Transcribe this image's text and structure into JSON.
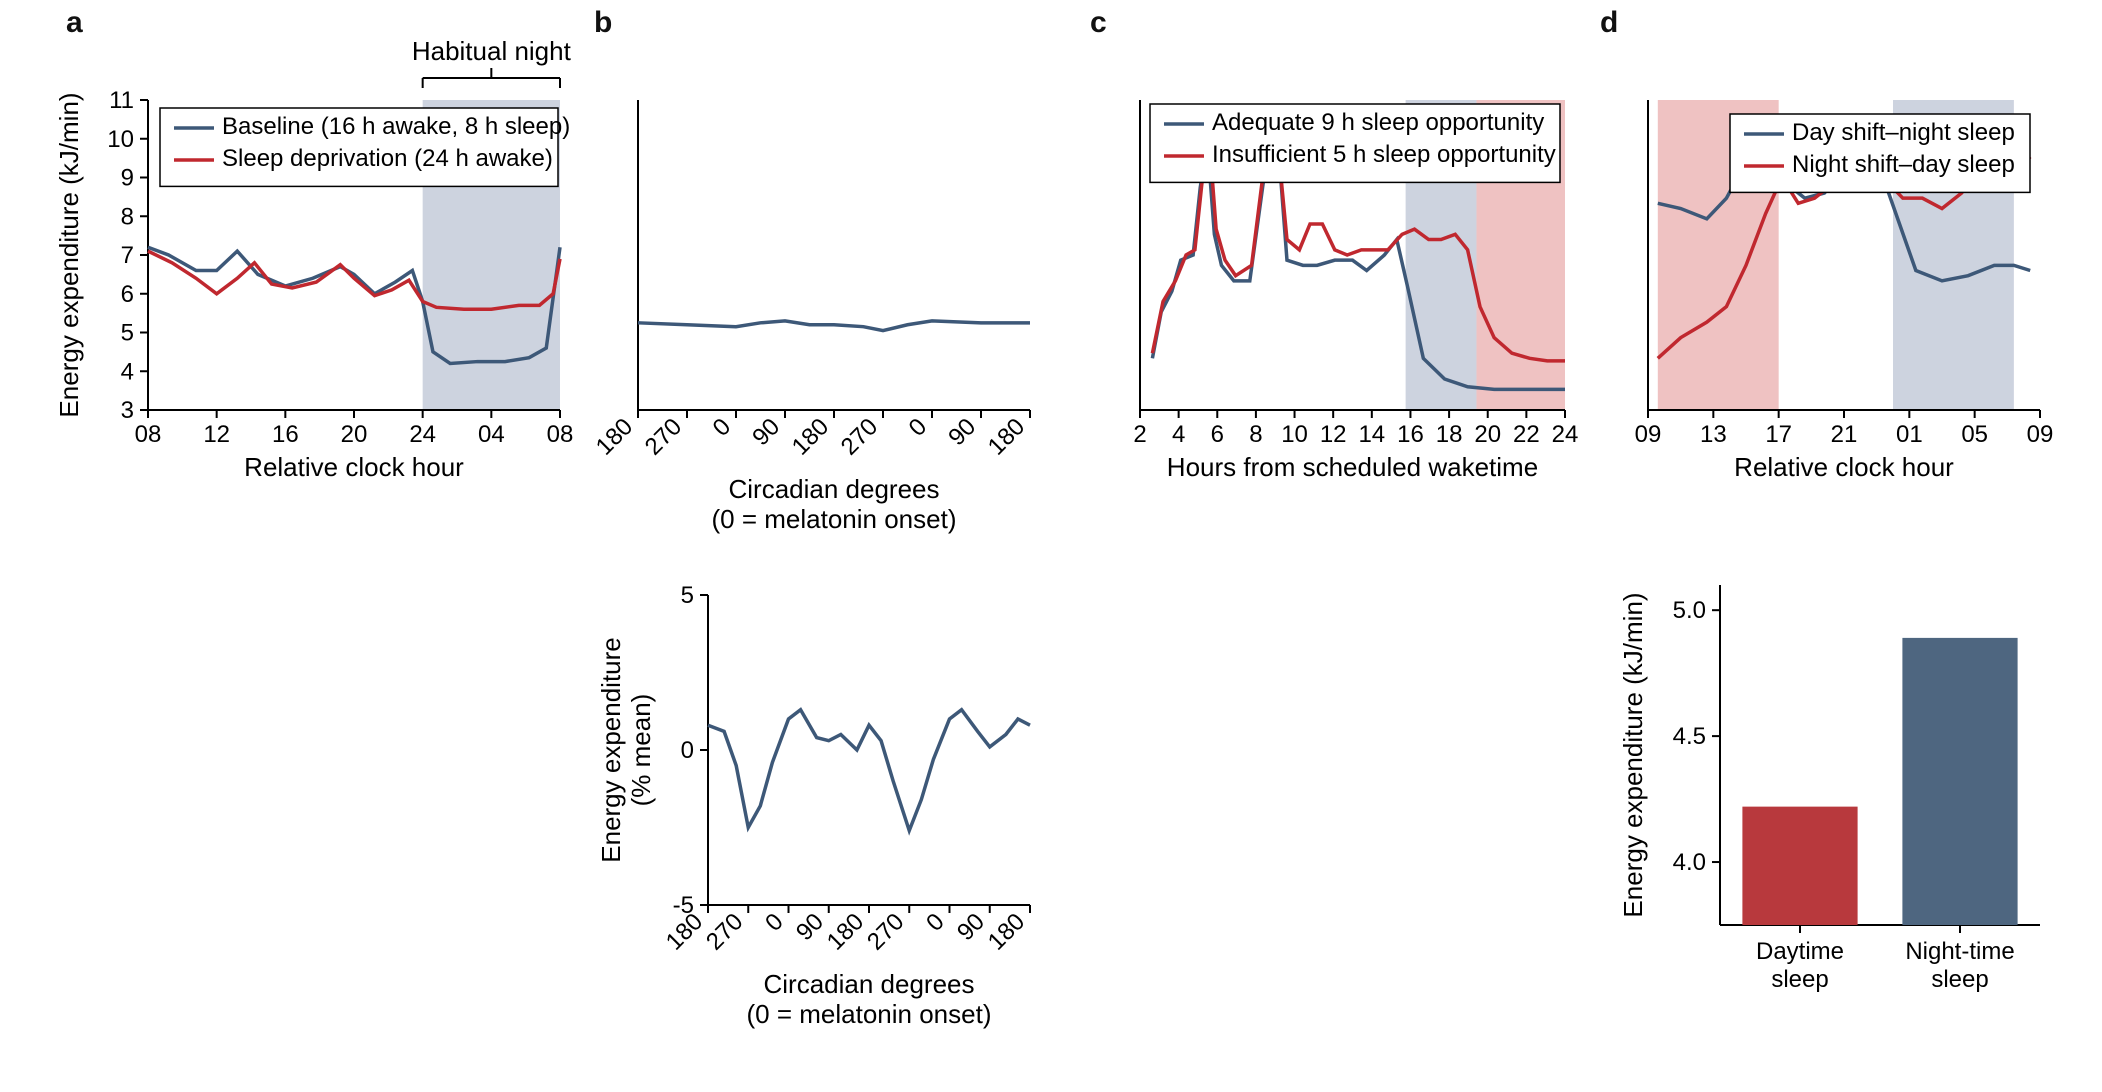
{
  "colors": {
    "blue": "#3d5878",
    "red": "#c0282f",
    "shade_blue": "#cdd3df",
    "shade_red": "#efc2c2",
    "bar_blue": "#4e6680",
    "bar_red": "#b8393d"
  },
  "panelA": {
    "label": "a",
    "type": "line",
    "xlabel": "Relative clock hour",
    "ylabel": "Energy expenditure (kJ/min)",
    "xticks": [
      "08",
      "12",
      "16",
      "20",
      "24",
      "04",
      "08"
    ],
    "ylim": [
      3,
      11
    ],
    "ytick_step": 1,
    "shade": {
      "from_tick": 4,
      "to_tick": 6,
      "label": "Habitual night"
    },
    "legend": [
      {
        "text": "Baseline (16 h awake, 8 h sleep)",
        "color_key": "blue"
      },
      {
        "text": "Sleep deprivation (24 h awake)",
        "color_key": "red"
      }
    ],
    "series": {
      "baseline": {
        "color_key": "blue",
        "pts": [
          [
            0,
            7.2
          ],
          [
            0.3,
            7.0
          ],
          [
            0.7,
            6.6
          ],
          [
            1.0,
            6.6
          ],
          [
            1.3,
            7.1
          ],
          [
            1.6,
            6.5
          ],
          [
            2.0,
            6.2
          ],
          [
            2.4,
            6.4
          ],
          [
            2.8,
            6.7
          ],
          [
            3.0,
            6.5
          ],
          [
            3.3,
            6.0
          ],
          [
            3.6,
            6.3
          ],
          [
            3.85,
            6.6
          ],
          [
            4.0,
            5.8
          ],
          [
            4.15,
            4.5
          ],
          [
            4.4,
            4.2
          ],
          [
            4.8,
            4.25
          ],
          [
            5.2,
            4.25
          ],
          [
            5.55,
            4.35
          ],
          [
            5.8,
            4.6
          ],
          [
            6.0,
            7.2
          ]
        ]
      },
      "deprivation": {
        "color_key": "red",
        "pts": [
          [
            0,
            7.1
          ],
          [
            0.35,
            6.8
          ],
          [
            0.7,
            6.4
          ],
          [
            1.0,
            6.0
          ],
          [
            1.3,
            6.4
          ],
          [
            1.55,
            6.8
          ],
          [
            1.8,
            6.25
          ],
          [
            2.1,
            6.15
          ],
          [
            2.45,
            6.3
          ],
          [
            2.8,
            6.75
          ],
          [
            3.0,
            6.4
          ],
          [
            3.3,
            5.95
          ],
          [
            3.55,
            6.1
          ],
          [
            3.8,
            6.35
          ],
          [
            4.0,
            5.8
          ],
          [
            4.2,
            5.65
          ],
          [
            4.6,
            5.6
          ],
          [
            5.0,
            5.6
          ],
          [
            5.4,
            5.7
          ],
          [
            5.7,
            5.7
          ],
          [
            5.9,
            6.0
          ],
          [
            6.0,
            6.9
          ]
        ]
      }
    }
  },
  "panelB_top": {
    "type": "line",
    "xlabel": "Circadian degrees",
    "xsub": "(0 = melatonin onset)",
    "xticks": [
      "180",
      "270",
      "0",
      "90",
      "180",
      "270",
      "0",
      "90",
      "180"
    ],
    "ylim_shared_with": "panelA",
    "series": {
      "flat": {
        "color_key": "blue",
        "pts": [
          [
            0,
            5.25
          ],
          [
            1,
            5.2
          ],
          [
            2,
            5.15
          ],
          [
            2.5,
            5.25
          ],
          [
            3,
            5.3
          ],
          [
            3.5,
            5.2
          ],
          [
            4,
            5.2
          ],
          [
            4.6,
            5.15
          ],
          [
            5,
            5.05
          ],
          [
            5.5,
            5.2
          ],
          [
            6,
            5.3
          ],
          [
            7,
            5.25
          ],
          [
            8,
            5.25
          ]
        ]
      }
    }
  },
  "panelB_bottom": {
    "type": "line",
    "xlabel": "Circadian degrees",
    "xsub": "(0 = melatonin onset)",
    "ylabel": "Energy expenditure\n(% mean)",
    "xticks": [
      "180",
      "270",
      "0",
      "90",
      "180",
      "270",
      "0",
      "90",
      "180"
    ],
    "ylim": [
      -5,
      5
    ],
    "ytick_step": 5,
    "series": {
      "circ": {
        "color_key": "blue",
        "pts": [
          [
            0,
            0.8
          ],
          [
            0.4,
            0.6
          ],
          [
            0.7,
            -0.5
          ],
          [
            1.0,
            -2.5
          ],
          [
            1.3,
            -1.8
          ],
          [
            1.6,
            -0.4
          ],
          [
            2.0,
            1.0
          ],
          [
            2.3,
            1.3
          ],
          [
            2.7,
            0.4
          ],
          [
            3.0,
            0.3
          ],
          [
            3.3,
            0.5
          ],
          [
            3.7,
            0.0
          ],
          [
            4.0,
            0.8
          ],
          [
            4.3,
            0.3
          ],
          [
            4.6,
            -1.0
          ],
          [
            5.0,
            -2.6
          ],
          [
            5.3,
            -1.6
          ],
          [
            5.6,
            -0.3
          ],
          [
            6.0,
            1.0
          ],
          [
            6.3,
            1.3
          ],
          [
            6.7,
            0.6
          ],
          [
            7.0,
            0.1
          ],
          [
            7.4,
            0.5
          ],
          [
            7.7,
            1.0
          ],
          [
            8.0,
            0.8
          ]
        ]
      }
    }
  },
  "panelC": {
    "label": "c",
    "type": "line",
    "xlabel": "Hours from scheduled waketime",
    "xticks": [
      "2",
      "4",
      "6",
      "8",
      "10",
      "12",
      "14",
      "16",
      "18",
      "20",
      "22",
      "24"
    ],
    "legend": [
      {
        "text": "Adequate 9 h sleep opportunity",
        "color_key": "blue"
      },
      {
        "text": "Insufficient 5 h sleep opportunity",
        "color_key": "red"
      }
    ],
    "shades": [
      {
        "from": 15,
        "to": 19,
        "color_key": "shade_blue"
      },
      {
        "from": 19,
        "to": 24,
        "color_key": "shade_red"
      }
    ],
    "ylim": [
      4,
      10
    ],
    "series": {
      "adequate": {
        "color_key": "blue",
        "pts": [
          [
            0.7,
            5.0
          ],
          [
            1.2,
            5.9
          ],
          [
            1.8,
            6.3
          ],
          [
            2.3,
            6.9
          ],
          [
            3.0,
            7.0
          ],
          [
            3.4,
            8.3
          ],
          [
            3.8,
            9.2
          ],
          [
            4.2,
            7.4
          ],
          [
            4.6,
            6.8
          ],
          [
            5.3,
            6.5
          ],
          [
            6.2,
            6.5
          ],
          [
            7.0,
            8.5
          ],
          [
            7.7,
            9.6
          ],
          [
            8.3,
            6.9
          ],
          [
            9.2,
            6.8
          ],
          [
            10.0,
            6.8
          ],
          [
            11.0,
            6.9
          ],
          [
            12.0,
            6.9
          ],
          [
            12.8,
            6.7
          ],
          [
            13.8,
            7.0
          ],
          [
            14.5,
            7.3
          ],
          [
            15.1,
            6.4
          ],
          [
            16.0,
            5.0
          ],
          [
            17.2,
            4.6
          ],
          [
            18.5,
            4.45
          ],
          [
            20.0,
            4.4
          ],
          [
            21.5,
            4.4
          ],
          [
            23.0,
            4.4
          ],
          [
            24.0,
            4.4
          ]
        ]
      },
      "insufficient": {
        "color_key": "red",
        "pts": [
          [
            0.7,
            5.1
          ],
          [
            1.3,
            6.1
          ],
          [
            2.0,
            6.5
          ],
          [
            2.6,
            7.0
          ],
          [
            3.1,
            7.1
          ],
          [
            3.5,
            8.4
          ],
          [
            3.9,
            9.3
          ],
          [
            4.3,
            7.5
          ],
          [
            4.8,
            6.9
          ],
          [
            5.4,
            6.6
          ],
          [
            6.3,
            6.8
          ],
          [
            7.0,
            8.7
          ],
          [
            7.6,
            9.8
          ],
          [
            8.3,
            7.3
          ],
          [
            9.0,
            7.1
          ],
          [
            9.6,
            7.6
          ],
          [
            10.3,
            7.6
          ],
          [
            11.0,
            7.1
          ],
          [
            11.7,
            7.0
          ],
          [
            12.5,
            7.1
          ],
          [
            13.2,
            7.1
          ],
          [
            14.0,
            7.1
          ],
          [
            14.8,
            7.4
          ],
          [
            15.5,
            7.5
          ],
          [
            16.3,
            7.3
          ],
          [
            17.0,
            7.3
          ],
          [
            17.8,
            7.4
          ],
          [
            18.5,
            7.1
          ],
          [
            19.2,
            6.0
          ],
          [
            20.0,
            5.4
          ],
          [
            21.0,
            5.1
          ],
          [
            22.0,
            5.0
          ],
          [
            23.0,
            4.95
          ],
          [
            24.0,
            4.95
          ]
        ]
      }
    }
  },
  "panelD_top": {
    "label": "d",
    "type": "line",
    "xlabel": "Relative clock hour",
    "xticks": [
      "09",
      "13",
      "17",
      "21",
      "01",
      "05",
      "09"
    ],
    "legend": [
      {
        "text": "Day shift–night sleep",
        "color_key": "blue"
      },
      {
        "text": "Night shift–day sleep",
        "color_key": "red"
      }
    ],
    "shades": [
      {
        "from_tick": 0.15,
        "to_tick": 2.0,
        "color_key": "shade_red"
      },
      {
        "from_tick": 3.75,
        "to_tick": 5.6,
        "color_key": "shade_blue"
      }
    ],
    "ylim": [
      3.5,
      6.5
    ],
    "series": {
      "day": {
        "color_key": "blue",
        "pts": [
          [
            0.15,
            5.5
          ],
          [
            0.5,
            5.45
          ],
          [
            0.9,
            5.35
          ],
          [
            1.2,
            5.55
          ],
          [
            1.5,
            5.9
          ],
          [
            1.8,
            5.95
          ],
          [
            2.1,
            5.7
          ],
          [
            2.4,
            5.55
          ],
          [
            2.7,
            5.6
          ],
          [
            3.0,
            5.8
          ],
          [
            3.3,
            5.65
          ],
          [
            3.6,
            5.75
          ],
          [
            3.85,
            5.3
          ],
          [
            4.1,
            4.85
          ],
          [
            4.5,
            4.75
          ],
          [
            4.9,
            4.8
          ],
          [
            5.3,
            4.9
          ],
          [
            5.6,
            4.9
          ],
          [
            5.85,
            4.85
          ]
        ]
      },
      "night": {
        "color_key": "red",
        "pts": [
          [
            0.15,
            4.0
          ],
          [
            0.5,
            4.2
          ],
          [
            0.9,
            4.35
          ],
          [
            1.2,
            4.5
          ],
          [
            1.5,
            4.9
          ],
          [
            1.8,
            5.4
          ],
          [
            2.05,
            5.75
          ],
          [
            2.3,
            5.5
          ],
          [
            2.55,
            5.55
          ],
          [
            2.85,
            5.7
          ],
          [
            3.1,
            5.85
          ],
          [
            3.35,
            5.9
          ],
          [
            3.6,
            5.75
          ],
          [
            3.9,
            5.55
          ],
          [
            4.2,
            5.55
          ],
          [
            4.5,
            5.45
          ],
          [
            4.8,
            5.6
          ],
          [
            5.1,
            5.85
          ],
          [
            5.4,
            5.8
          ],
          [
            5.7,
            5.85
          ],
          [
            5.85,
            5.95
          ]
        ]
      }
    }
  },
  "panelD_bottom": {
    "type": "bar",
    "ylabel": "Energy expenditure (kJ/min)",
    "yticks": [
      4.0,
      4.5,
      5.0
    ],
    "ylim": [
      3.75,
      5.1
    ],
    "bars": [
      {
        "label": "Daytime\nsleep",
        "value": 4.22,
        "color_key": "bar_red"
      },
      {
        "label": "Night-time\nsleep",
        "value": 4.89,
        "color_key": "bar_blue"
      }
    ]
  },
  "panelB": {
    "label": "b"
  }
}
